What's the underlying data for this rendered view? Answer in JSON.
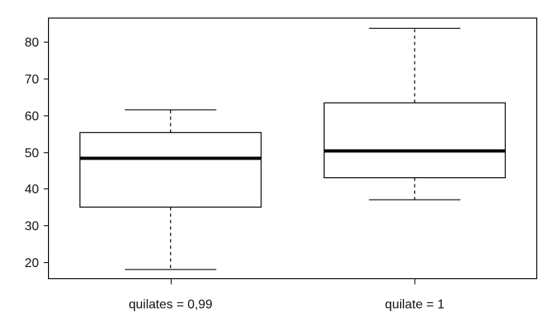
{
  "chart_data": {
    "type": "box",
    "title": "",
    "xlabel": "",
    "ylabel": "",
    "ylim": [
      15.5,
      86.5
    ],
    "y_ticks": [
      20,
      30,
      40,
      50,
      60,
      70,
      80
    ],
    "grid": false,
    "legend": "none",
    "categories": [
      "quilates = 0,99",
      "quilate = 1"
    ],
    "boxes": [
      {
        "category": "quilates = 0,99",
        "whisker_low": 18,
        "q1": 35,
        "median": 48.3,
        "q3": 55.3,
        "whisker_high": 61.5
      },
      {
        "category": "quilate = 1",
        "whisker_low": 37,
        "q1": 43,
        "median": 50.3,
        "q3": 63.4,
        "whisker_high": 83.7
      }
    ],
    "colors": {
      "box_stroke": "#000000",
      "box_fill": "#ffffff",
      "median": "#000000"
    }
  }
}
